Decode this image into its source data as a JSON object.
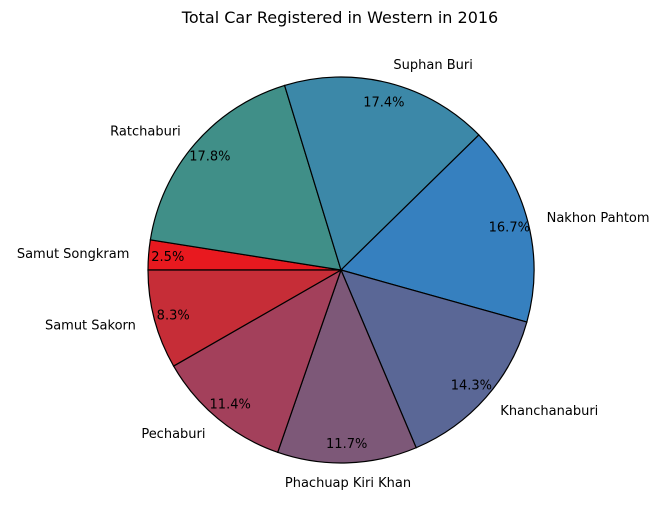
{
  "chart_data": {
    "type": "pie",
    "title": "Total Car Registered in Western in 2016",
    "start_angle_deg": 180,
    "direction": "clockwise",
    "slices": [
      {
        "label": "Samut Songkram",
        "value": 2.5,
        "pct_label": "2.5%",
        "color": "#e8191f"
      },
      {
        "label": "Ratchaburi",
        "value": 17.8,
        "pct_label": "17.8%",
        "color": "#408f88"
      },
      {
        "label": "Suphan Buri",
        "value": 17.4,
        "pct_label": "17.4%",
        "color": "#3c88a8"
      },
      {
        "label": "Nakhon Pahtom",
        "value": 16.7,
        "pct_label": "16.7%",
        "color": "#3680bf"
      },
      {
        "label": "Khanchanaburi",
        "value": 14.3,
        "pct_label": "14.3%",
        "color": "#5a6796"
      },
      {
        "label": "Phachuap Kiri Khan",
        "value": 11.7,
        "pct_label": "11.7%",
        "color": "#7d5878"
      },
      {
        "label": "Pechaburi",
        "value": 11.4,
        "pct_label": "11.4%",
        "color": "#a3405b"
      },
      {
        "label": "Samut Sakorn",
        "value": 8.3,
        "pct_label": "8.3%",
        "color": "#c62d37"
      }
    ]
  }
}
